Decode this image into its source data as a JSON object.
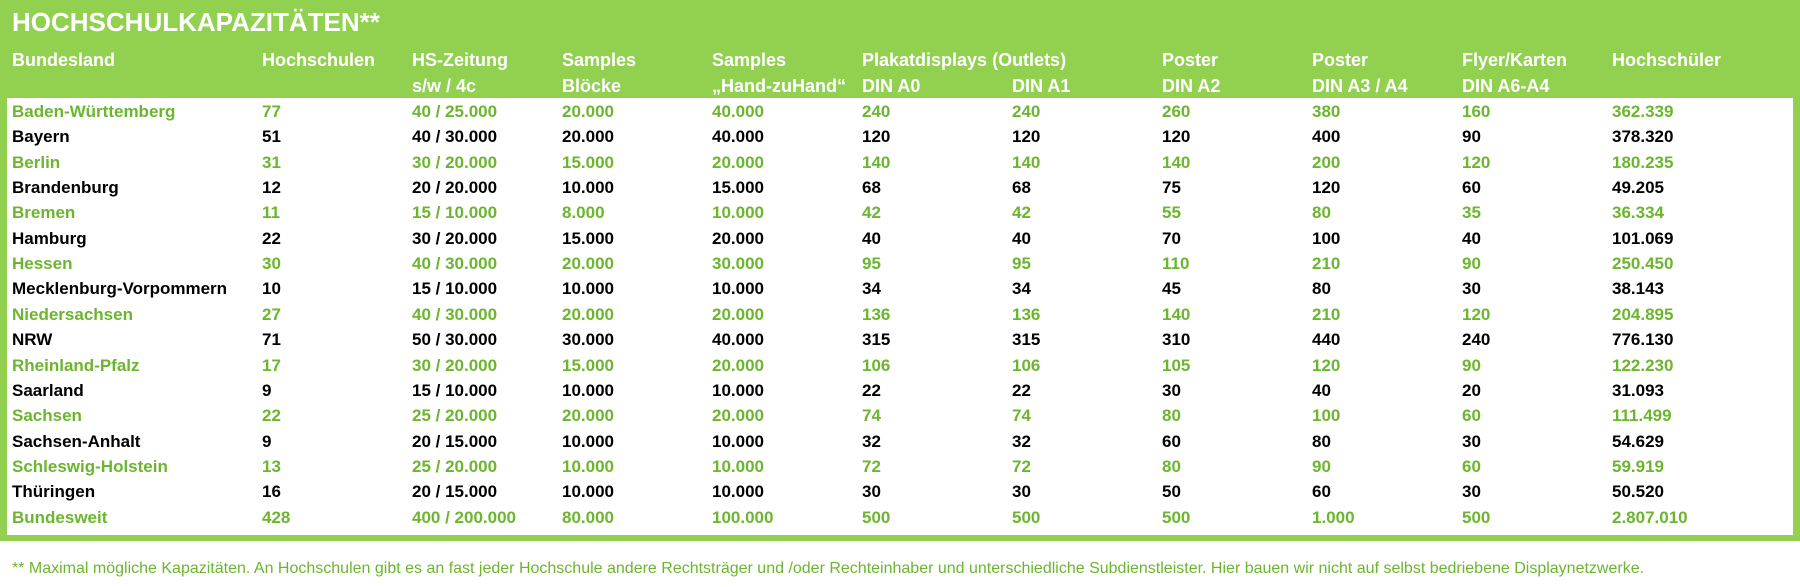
{
  "header": {
    "title": "HOCHSCHULKAPAZITÄTEN**"
  },
  "table": {
    "header_top": [
      "Bundesland",
      "Hochschulen",
      "HS-Zeitung",
      "Samples",
      "Samples",
      "Plakatdisplays (Outlets)",
      "Poster",
      "Poster",
      "Flyer/Karten",
      "Hochschüler"
    ],
    "header_sub": [
      "s/w / 4c",
      "Blöcke",
      "„Hand-zuHand“",
      "DIN A0",
      "DIN A1",
      "DIN A2",
      "DIN A3 / A4",
      "DIN A6-A4"
    ],
    "rows": [
      [
        "Baden-Württemberg",
        "77",
        "40 / 25.000",
        "20.000",
        "40.000",
        "240",
        "240",
        "260",
        "380",
        "160",
        "362.339"
      ],
      [
        "Bayern",
        "51",
        "40 / 30.000",
        "20.000",
        "40.000",
        "120",
        "120",
        "120",
        "400",
        "90",
        "378.320"
      ],
      [
        "Berlin",
        "31",
        "30 / 20.000",
        "15.000",
        "20.000",
        "140",
        "140",
        "140",
        "200",
        "120",
        "180.235"
      ],
      [
        "Brandenburg",
        "12",
        "20 / 20.000",
        "10.000",
        "15.000",
        "68",
        "68",
        "75",
        "120",
        "60",
        "49.205"
      ],
      [
        "Bremen",
        "11",
        "15 / 10.000",
        "8.000",
        "10.000",
        "42",
        "42",
        "55",
        "80",
        "35",
        "36.334"
      ],
      [
        "Hamburg",
        "22",
        "30 / 20.000",
        "15.000",
        "20.000",
        "40",
        "40",
        "70",
        "100",
        "40",
        "101.069"
      ],
      [
        "Hessen",
        "30",
        "40 / 30.000",
        "20.000",
        "30.000",
        "95",
        "95",
        "110",
        "210",
        "90",
        "250.450"
      ],
      [
        "Mecklenburg-Vorpommern",
        "10",
        "15 / 10.000",
        "10.000",
        "10.000",
        "34",
        "34",
        "45",
        "80",
        "30",
        "38.143"
      ],
      [
        "Niedersachsen",
        "27",
        "40 / 30.000",
        "20.000",
        "20.000",
        "136",
        "136",
        "140",
        "210",
        "120",
        "204.895"
      ],
      [
        "NRW",
        "71",
        "50 / 30.000",
        "30.000",
        "40.000",
        "315",
        "315",
        "310",
        "440",
        "240",
        "776.130"
      ],
      [
        "Rheinland-Pfalz",
        "17",
        "30 / 20.000",
        "15.000",
        "20.000",
        "106",
        "106",
        "105",
        "120",
        "90",
        "122.230"
      ],
      [
        "Saarland",
        "9",
        "15 / 10.000",
        "10.000",
        "10.000",
        "22",
        "22",
        "30",
        "40",
        "20",
        "31.093"
      ],
      [
        "Sachsen",
        "22",
        "25 / 20.000",
        "20.000",
        "20.000",
        "74",
        "74",
        "80",
        "100",
        "60",
        "111.499"
      ],
      [
        "Sachsen-Anhalt",
        "9",
        "20 / 15.000",
        "10.000",
        "10.000",
        "32",
        "32",
        "60",
        "80",
        "30",
        "54.629"
      ],
      [
        "Schleswig-Holstein",
        "13",
        "25 / 20.000",
        "10.000",
        "10.000",
        "72",
        "72",
        "80",
        "90",
        "60",
        "59.919"
      ],
      [
        "Thüringen",
        "16",
        "20 / 15.000",
        "10.000",
        "10.000",
        "30",
        "30",
        "50",
        "60",
        "30",
        "50.520"
      ],
      [
        "Bundesweit",
        "428",
        "400 / 200.000",
        "80.000",
        "100.000",
        "500",
        "500",
        "500",
        "1.000",
        "500",
        "2.807.010"
      ]
    ]
  },
  "footnote": "** Maximal mögliche Kapazitäten. An Hochschulen gibt es an fast jeder Hochschule andere Rechtsträger und /oder Rechteinhaber und unterschiedliche Subdienstleister. Hier bauen wir nicht auf selbst bedriebene Displaynetzwerke."
}
